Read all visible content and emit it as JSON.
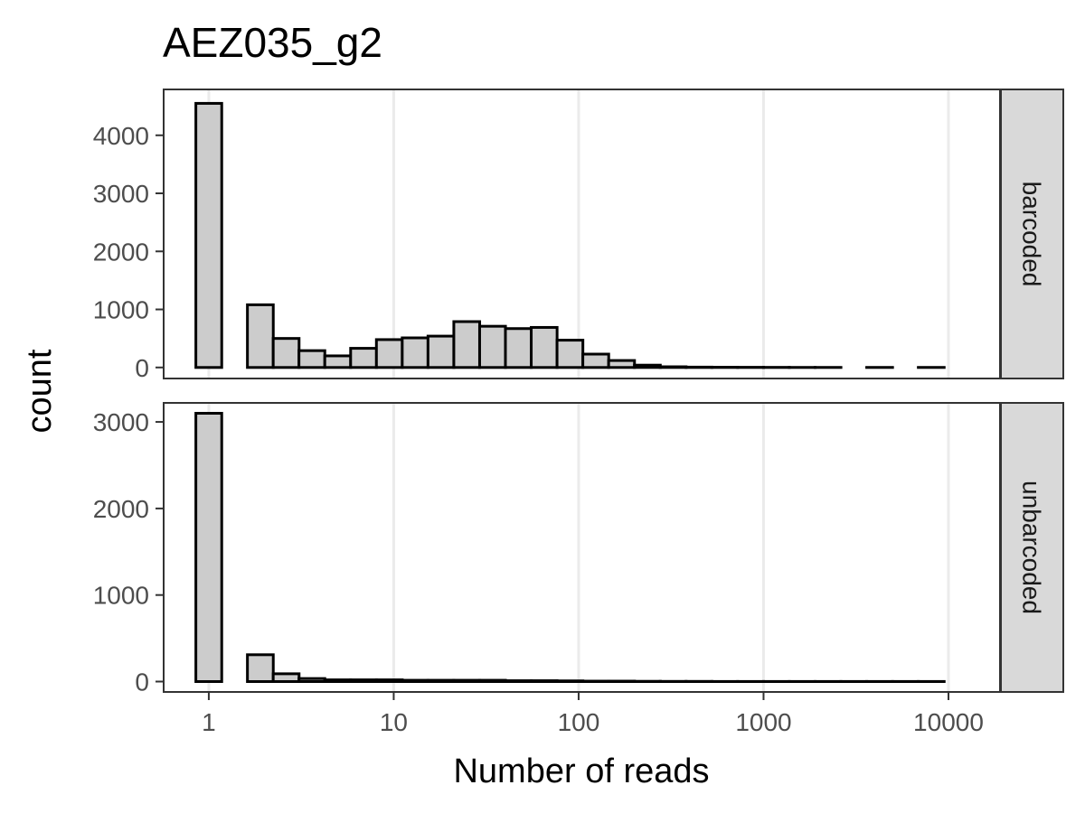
{
  "chart_data": {
    "type": "bar",
    "title": "AEZ035_g2",
    "xlabel": "Number of reads",
    "ylabel": "count",
    "x_scale": "log10",
    "x_ticks": [
      "1",
      "10",
      "100",
      "1000",
      "10000"
    ],
    "x_tick_values": [
      1,
      10,
      100,
      1000,
      10000
    ],
    "xlim": [
      0.57,
      19000
    ],
    "grid": true,
    "bar_fill": "#cccccc",
    "bar_outline": "#000000",
    "panels": [
      {
        "facet": "barcoded",
        "ylim": [
          -190,
          4790
        ],
        "y_ticks": [
          "0",
          "1000",
          "2000",
          "3000",
          "4000"
        ],
        "y_tick_values": [
          0,
          1000,
          2000,
          3000,
          4000
        ],
        "bins": [
          {
            "x": 1.0,
            "count": 4550
          },
          {
            "x": 1.38,
            "count": 0
          },
          {
            "x": 1.9,
            "count": 1080
          },
          {
            "x": 2.62,
            "count": 500
          },
          {
            "x": 3.61,
            "count": 290
          },
          {
            "x": 4.98,
            "count": 200
          },
          {
            "x": 6.87,
            "count": 330
          },
          {
            "x": 9.47,
            "count": 480
          },
          {
            "x": 13.06,
            "count": 510
          },
          {
            "x": 18.0,
            "count": 540
          },
          {
            "x": 24.83,
            "count": 790
          },
          {
            "x": 34.24,
            "count": 710
          },
          {
            "x": 47.21,
            "count": 670
          },
          {
            "x": 65.1,
            "count": 690
          },
          {
            "x": 89.77,
            "count": 470
          },
          {
            "x": 123.8,
            "count": 230
          },
          {
            "x": 170.7,
            "count": 120
          },
          {
            "x": 235.4,
            "count": 40
          },
          {
            "x": 324.6,
            "count": 12
          },
          {
            "x": 447.6,
            "count": 6
          },
          {
            "x": 617.2,
            "count": 4
          },
          {
            "x": 851.1,
            "count": 3
          },
          {
            "x": 1173.7,
            "count": 2
          },
          {
            "x": 1618.5,
            "count": 1
          },
          {
            "x": 2231.9,
            "count": 1
          },
          {
            "x": 3077.8,
            "count": 0
          },
          {
            "x": 4244.1,
            "count": 1
          },
          {
            "x": 5852.6,
            "count": 0
          },
          {
            "x": 8070.6,
            "count": 1
          }
        ]
      },
      {
        "facet": "unbarcoded",
        "ylim": [
          -120,
          3220
        ],
        "y_ticks": [
          "0",
          "1000",
          "2000",
          "3000"
        ],
        "y_tick_values": [
          0,
          1000,
          2000,
          3000
        ],
        "bins": [
          {
            "x": 1.0,
            "count": 3100
          },
          {
            "x": 1.38,
            "count": 0
          },
          {
            "x": 1.9,
            "count": 310
          },
          {
            "x": 2.62,
            "count": 90
          },
          {
            "x": 3.61,
            "count": 35
          },
          {
            "x": 4.98,
            "count": 20
          },
          {
            "x": 6.87,
            "count": 20
          },
          {
            "x": 9.47,
            "count": 20
          },
          {
            "x": 13.06,
            "count": 15
          },
          {
            "x": 18.0,
            "count": 15
          },
          {
            "x": 24.83,
            "count": 15
          },
          {
            "x": 34.24,
            "count": 15
          },
          {
            "x": 47.21,
            "count": 10
          },
          {
            "x": 65.1,
            "count": 10
          },
          {
            "x": 89.77,
            "count": 8
          },
          {
            "x": 123.8,
            "count": 5
          },
          {
            "x": 170.7,
            "count": 5
          },
          {
            "x": 235.4,
            "count": 3
          },
          {
            "x": 324.6,
            "count": 2
          },
          {
            "x": 447.6,
            "count": 2
          },
          {
            "x": 617.2,
            "count": 1
          },
          {
            "x": 851.1,
            "count": 1
          },
          {
            "x": 1173.7,
            "count": 1
          },
          {
            "x": 1618.5,
            "count": 1
          },
          {
            "x": 2231.9,
            "count": 1
          },
          {
            "x": 3077.8,
            "count": 1
          },
          {
            "x": 4244.1,
            "count": 1
          },
          {
            "x": 5852.6,
            "count": 1
          },
          {
            "x": 8070.6,
            "count": 1
          }
        ]
      }
    ]
  }
}
